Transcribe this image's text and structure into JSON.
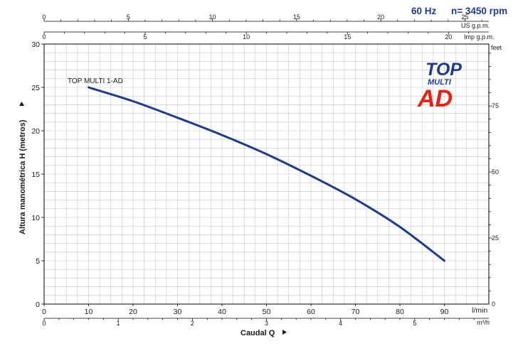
{
  "header": {
    "frequency": "60 Hz",
    "speed": "n= 3450 rpm"
  },
  "logo": {
    "line1": "TOP",
    "line2": "MULTI",
    "line3": "AD"
  },
  "colors": {
    "curve": "#1f3b8c",
    "grid": "#c6c6c6",
    "frame": "#000000",
    "logo_blue": "#1f3b8c",
    "logo_red": "#e2231a"
  },
  "arrow_icon": "triangle-right",
  "chart_data": {
    "type": "line",
    "title": "",
    "xlabel": "Caudal Q",
    "ylabel": "Altura manométrica H (metros)",
    "xlim": [
      0,
      100
    ],
    "ylim": [
      0,
      30
    ],
    "grid": true,
    "series": [
      {
        "name": "TOP MULTI 1-AD",
        "x": [
          10,
          20,
          30,
          40,
          50,
          60,
          70,
          80,
          90
        ],
        "y": [
          25,
          23.4,
          21.5,
          19.5,
          17.3,
          14.8,
          12.1,
          8.9,
          5.0
        ]
      }
    ],
    "axes": {
      "bottom_primary": {
        "unit": "l/min",
        "ticks": [
          0,
          10,
          20,
          30,
          40,
          50,
          60,
          70,
          80,
          90
        ],
        "scale": 1
      },
      "bottom_secondary": {
        "unit": "m³/h",
        "ticks": [
          0,
          1,
          2,
          3,
          4,
          5
        ],
        "scale": 16.6667
      },
      "top_us": {
        "unit": "US g.p.m.",
        "ticks": [
          0,
          5,
          10,
          15,
          20,
          25
        ],
        "scale": 3.7854
      },
      "top_imp": {
        "unit": "Imp g.p.m.",
        "ticks": [
          0,
          5,
          10,
          15,
          20
        ],
        "scale": 4.54609
      },
      "left": {
        "unit": "metros",
        "ticks": [
          0,
          5,
          10,
          15,
          20,
          25,
          30
        ]
      },
      "right": {
        "unit": "feet",
        "ticks": [
          0,
          25,
          50,
          75
        ],
        "scale": 0.3048
      }
    }
  }
}
